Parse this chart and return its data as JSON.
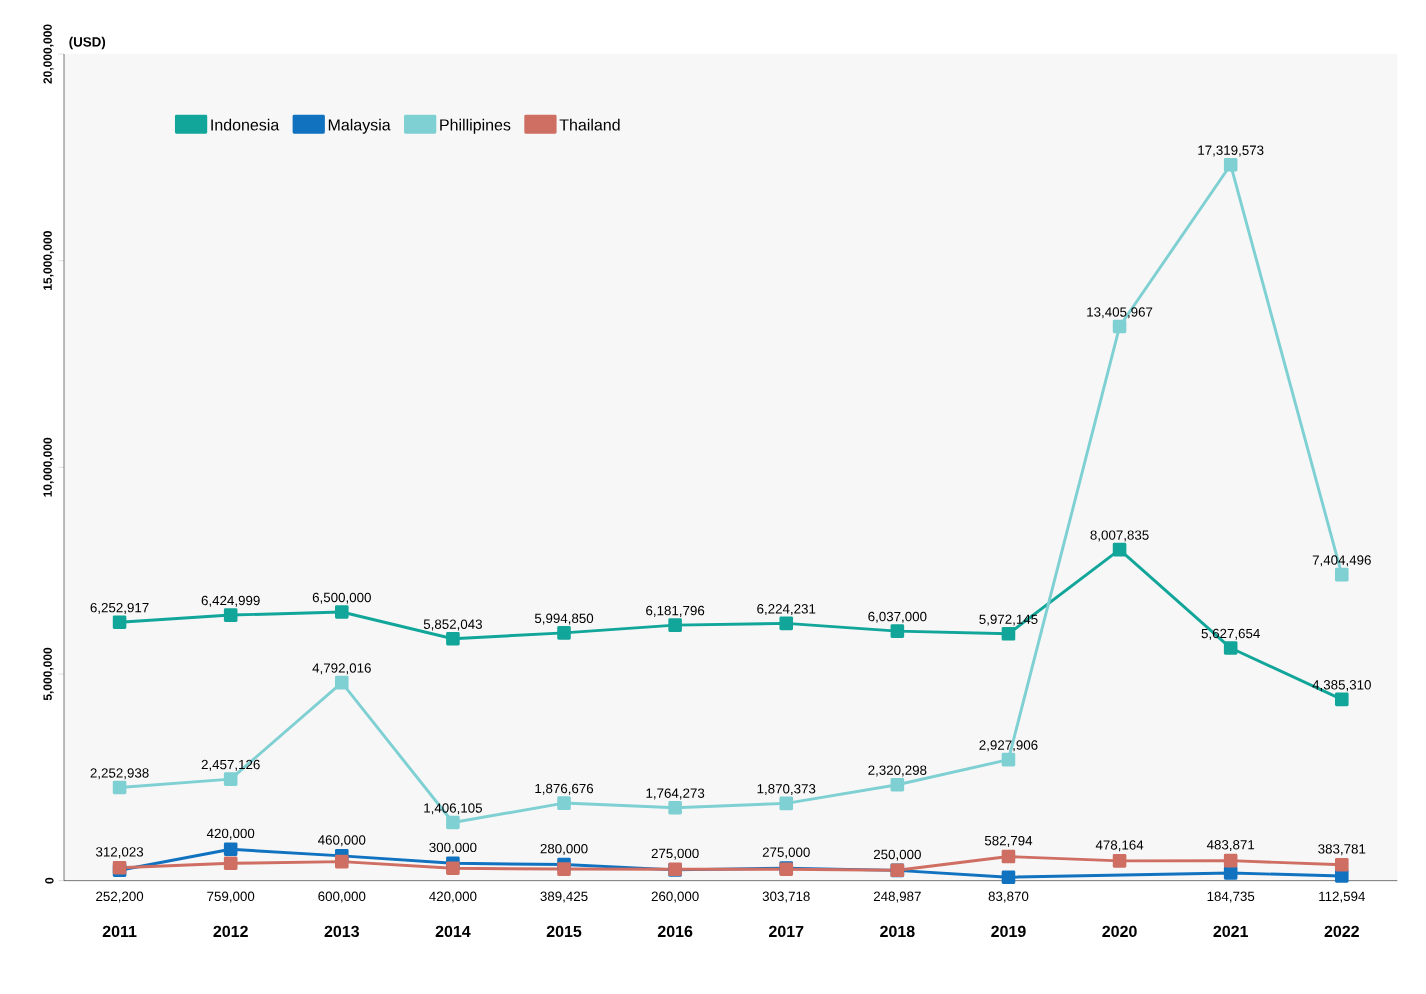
{
  "chart_data": {
    "type": "line",
    "ylabel": "(USD)",
    "categories": [
      "2011",
      "2012",
      "2013",
      "2014",
      "2015",
      "2016",
      "2017",
      "2018",
      "2019",
      "2020",
      "2021",
      "2022"
    ],
    "series": [
      {
        "name": "Indonesia",
        "color": "#12a69a",
        "values": [
          6252917,
          6424999,
          6500000,
          5852043,
          5994850,
          6181796,
          6224231,
          6037000,
          5972145,
          8007835,
          5627654,
          4385310
        ],
        "value_labels": [
          "6,252,917",
          "6,424,999",
          "6,500,000",
          "5,852,043",
          "5,994,850",
          "6,181,796",
          "6,224,231",
          "6,037,000",
          "5,972,145",
          "8,007,835",
          "5,627,654",
          "4,385,310"
        ]
      },
      {
        "name": "Malaysia",
        "color": "#1172c0",
        "values": [
          252200,
          759000,
          600000,
          420000,
          389425,
          260000,
          303718,
          248987,
          83870,
          null,
          184735,
          112594
        ],
        "value_labels": [
          "252,200",
          "759,000",
          "600,000",
          "420,000",
          "389,425",
          "260,000",
          "303,718",
          "248,987",
          "83,870",
          null,
          "184,735",
          "112,594"
        ]
      },
      {
        "name": "Phillipines",
        "color": "#7fd0d3",
        "values": [
          2252938,
          2457126,
          4792016,
          1406105,
          1876676,
          1764273,
          1870373,
          2320298,
          2927906,
          13405967,
          17319573,
          7404496
        ],
        "value_labels": [
          "2,252,938",
          "2,457,126",
          "4,792,016",
          "1,406,105",
          "1,876,676",
          "1,764,273",
          "1,870,373",
          "2,320,298",
          "2,927,906",
          "13,405,967",
          "17,319,573",
          "7,404,496"
        ]
      },
      {
        "name": "Thailand",
        "color": "#cf6e62",
        "values": [
          312023,
          420000,
          460000,
          300000,
          280000,
          275000,
          275000,
          250000,
          582794,
          478164,
          483871,
          383781
        ],
        "value_labels": [
          "312,023",
          "420,000",
          "460,000",
          "300,000",
          "280,000",
          "275,000",
          "275,000",
          "250,000",
          "582,794",
          "478,164",
          "483,871",
          "383,781"
        ]
      }
    ],
    "ylim": [
      0,
      20000000
    ],
    "yticks": [
      0,
      {
        "value": 5000000,
        "label": "5,000,000"
      },
      {
        "value": 10000000,
        "label": "10,000,000"
      },
      {
        "value": 15000000,
        "label": "15,000,000"
      },
      {
        "value": 20000000,
        "label": "20,000,000"
      }
    ],
    "legend": "top left",
    "marker": "square",
    "grid": false
  }
}
